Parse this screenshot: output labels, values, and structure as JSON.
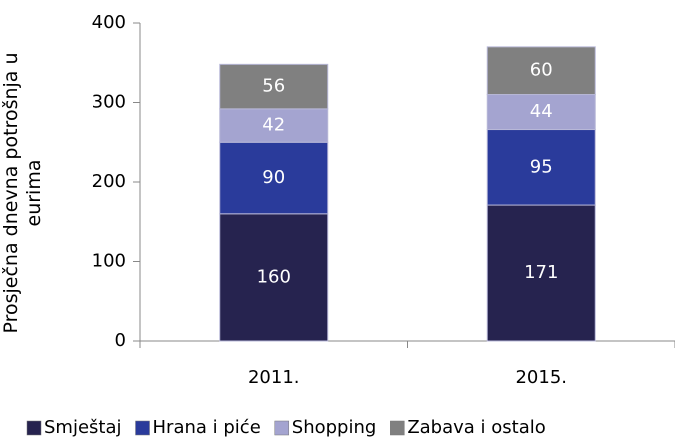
{
  "chart_data": {
    "type": "stacked_bar",
    "ylabel": "Prosječna dnevna potrošnja u eurima",
    "categories": [
      "2011.",
      "2015."
    ],
    "series": [
      {
        "name": "Smještaj",
        "color": "#26234f",
        "values": [
          160,
          171
        ]
      },
      {
        "name": "Hrana i piće",
        "color": "#2a3b9b",
        "values": [
          90,
          95
        ]
      },
      {
        "name": "Shopping",
        "color": "#a4a4d0",
        "values": [
          42,
          44
        ]
      },
      {
        "name": "Zabava i ostalo",
        "color": "#808080",
        "values": [
          56,
          60
        ]
      }
    ],
    "ylim": [
      0,
      400
    ],
    "yticks": [
      0,
      100,
      200,
      300,
      400
    ],
    "legend": "bottom"
  }
}
